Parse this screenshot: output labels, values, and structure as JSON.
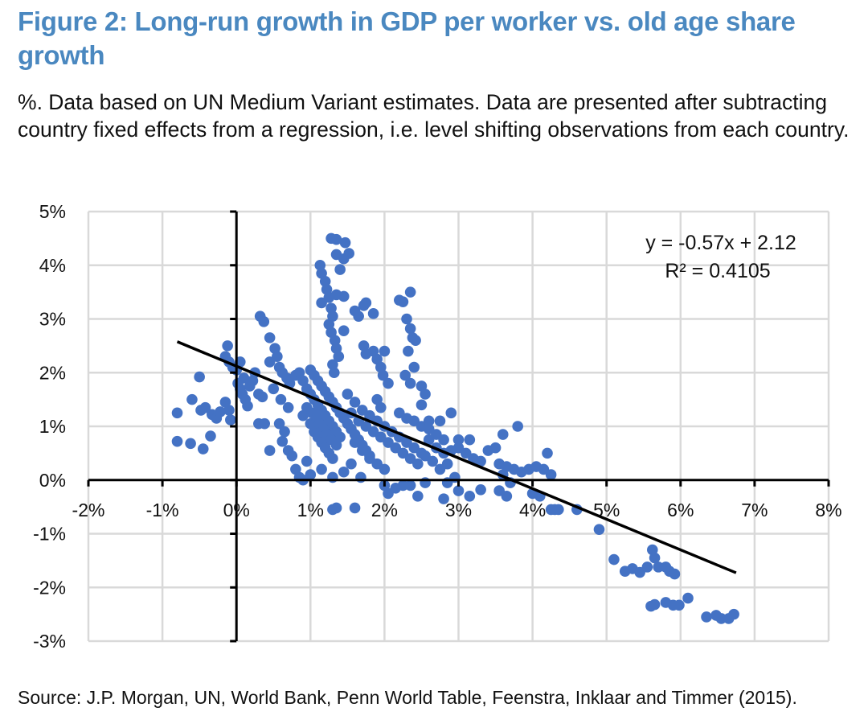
{
  "title": "Figure 2: Long-run growth in GDP per worker vs. old age share growth",
  "subtitle": "%. Data based on UN Medium Variant estimates. Data are presented after subtracting country fixed effects from a regression, i.e. level shifting observations from each country.",
  "source": "Source: J.P. Morgan, UN, World Bank, Penn World Table, Feenstra, Inklaar and Timmer (2015).",
  "colors": {
    "title": "#4a88c0",
    "points": "#4472C4",
    "trendline": "#000000",
    "grid": "#d9d9d9"
  },
  "chart_data": {
    "type": "scatter",
    "title": "Long-run growth in GDP per worker vs. old age share growth",
    "xlabel": "",
    "ylabel": "",
    "xlim": [
      -2,
      8
    ],
    "ylim": [
      -3,
      5
    ],
    "x_ticks": [
      "-2%",
      "-1%",
      "0%",
      "1%",
      "2%",
      "3%",
      "4%",
      "5%",
      "6%",
      "7%",
      "8%"
    ],
    "y_ticks": [
      "5%",
      "4%",
      "3%",
      "2%",
      "1%",
      "0%",
      "-1%",
      "-2%",
      "-3%"
    ],
    "x_tick_values": [
      -2,
      -1,
      0,
      1,
      2,
      3,
      4,
      5,
      6,
      7,
      8
    ],
    "y_tick_values": [
      5,
      4,
      3,
      2,
      1,
      0,
      -1,
      -2,
      -3
    ],
    "grid": true,
    "trendline": {
      "equation": "y = -0.57x + 2.12",
      "r_squared": "R² = 0.4105",
      "slope": -0.57,
      "intercept": 2.12,
      "x_range": [
        -0.8,
        6.75
      ]
    },
    "points": [
      [
        -0.8,
        1.25
      ],
      [
        -0.8,
        0.72
      ],
      [
        -0.62,
        0.68
      ],
      [
        -0.45,
        0.58
      ],
      [
        -0.35,
        0.82
      ],
      [
        -0.5,
        1.92
      ],
      [
        -0.6,
        1.5
      ],
      [
        -0.48,
        1.3
      ],
      [
        -0.42,
        1.35
      ],
      [
        -0.33,
        1.22
      ],
      [
        -0.27,
        1.15
      ],
      [
        -0.22,
        1.27
      ],
      [
        -0.15,
        1.45
      ],
      [
        -0.1,
        1.3
      ],
      [
        -0.08,
        1.12
      ],
      [
        -0.12,
        2.5
      ],
      [
        -0.15,
        2.3
      ],
      [
        -0.1,
        2.2
      ],
      [
        -0.05,
        2.1
      ],
      [
        0.0,
        2.05
      ],
      [
        0.05,
        2.2
      ],
      [
        0.1,
        1.9
      ],
      [
        0.02,
        1.8
      ],
      [
        0.05,
        1.7
      ],
      [
        0.08,
        1.6
      ],
      [
        0.12,
        1.5
      ],
      [
        0.15,
        1.38
      ],
      [
        0.18,
        1.75
      ],
      [
        0.22,
        1.85
      ],
      [
        0.25,
        2.0
      ],
      [
        0.3,
        1.6
      ],
      [
        0.35,
        1.55
      ],
      [
        0.3,
        1.05
      ],
      [
        0.38,
        1.05
      ],
      [
        0.32,
        3.05
      ],
      [
        0.37,
        2.95
      ],
      [
        0.45,
        2.65
      ],
      [
        0.52,
        2.45
      ],
      [
        0.55,
        2.3
      ],
      [
        0.45,
        2.2
      ],
      [
        0.58,
        2.1
      ],
      [
        0.62,
        2.0
      ],
      [
        0.68,
        1.9
      ],
      [
        0.72,
        1.8
      ],
      [
        0.5,
        1.7
      ],
      [
        0.6,
        1.5
      ],
      [
        0.7,
        1.35
      ],
      [
        0.58,
        1.05
      ],
      [
        0.65,
        0.9
      ],
      [
        0.62,
        0.72
      ],
      [
        0.7,
        0.55
      ],
      [
        0.75,
        0.45
      ],
      [
        0.45,
        0.55
      ],
      [
        0.8,
        0.2
      ],
      [
        0.85,
        0.05
      ],
      [
        0.95,
        0.35
      ],
      [
        0.8,
        1.95
      ],
      [
        0.85,
        2.0
      ],
      [
        0.9,
        1.85
      ],
      [
        0.95,
        1.7
      ],
      [
        1.0,
        1.6
      ],
      [
        1.05,
        1.5
      ],
      [
        1.1,
        1.4
      ],
      [
        1.15,
        1.3
      ],
      [
        1.2,
        1.2
      ],
      [
        1.25,
        1.1
      ],
      [
        1.3,
        1.0
      ],
      [
        1.35,
        0.9
      ],
      [
        1.4,
        0.8
      ],
      [
        0.9,
        1.2
      ],
      [
        1.0,
        1.05
      ],
      [
        1.05,
        0.9
      ],
      [
        1.1,
        0.8
      ],
      [
        1.15,
        0.7
      ],
      [
        1.2,
        0.6
      ],
      [
        1.25,
        0.5
      ],
      [
        1.3,
        0.4
      ],
      [
        0.95,
        1.35
      ],
      [
        1.02,
        1.25
      ],
      [
        1.08,
        1.15
      ],
      [
        1.12,
        1.05
      ],
      [
        1.18,
        0.95
      ],
      [
        1.22,
        0.85
      ],
      [
        1.28,
        0.75
      ],
      [
        1.35,
        0.65
      ],
      [
        1.0,
        2.05
      ],
      [
        1.05,
        1.95
      ],
      [
        1.1,
        1.85
      ],
      [
        1.15,
        1.75
      ],
      [
        1.2,
        1.65
      ],
      [
        1.25,
        1.55
      ],
      [
        1.3,
        1.45
      ],
      [
        1.35,
        1.35
      ],
      [
        1.4,
        1.25
      ],
      [
        1.45,
        1.15
      ],
      [
        1.5,
        1.05
      ],
      [
        1.55,
        0.95
      ],
      [
        1.6,
        0.85
      ],
      [
        1.65,
        0.75
      ],
      [
        1.7,
        0.65
      ],
      [
        1.75,
        0.55
      ],
      [
        1.8,
        0.45
      ],
      [
        1.13,
        4.0
      ],
      [
        1.15,
        3.85
      ],
      [
        1.2,
        3.7
      ],
      [
        1.22,
        3.55
      ],
      [
        1.25,
        3.4
      ],
      [
        1.15,
        3.3
      ],
      [
        1.28,
        3.2
      ],
      [
        1.3,
        3.05
      ],
      [
        1.25,
        2.9
      ],
      [
        1.28,
        2.75
      ],
      [
        1.33,
        2.6
      ],
      [
        1.35,
        2.45
      ],
      [
        1.38,
        2.3
      ],
      [
        1.3,
        2.15
      ],
      [
        1.32,
        2.0
      ],
      [
        1.28,
        4.5
      ],
      [
        1.35,
        4.48
      ],
      [
        1.47,
        4.42
      ],
      [
        1.52,
        4.22
      ],
      [
        1.35,
        4.2
      ],
      [
        1.45,
        4.12
      ],
      [
        1.4,
        3.92
      ],
      [
        1.35,
        3.45
      ],
      [
        1.45,
        3.42
      ],
      [
        1.45,
        2.78
      ],
      [
        1.6,
        3.15
      ],
      [
        1.65,
        3.05
      ],
      [
        1.72,
        3.25
      ],
      [
        1.75,
        3.3
      ],
      [
        1.85,
        3.1
      ],
      [
        1.72,
        2.5
      ],
      [
        1.75,
        2.35
      ],
      [
        1.85,
        2.4
      ],
      [
        1.9,
        2.25
      ],
      [
        1.95,
        2.1
      ],
      [
        2.0,
        2.4
      ],
      [
        1.98,
        1.95
      ],
      [
        2.05,
        1.8
      ],
      [
        1.9,
        1.5
      ],
      [
        1.95,
        1.35
      ],
      [
        2.2,
        3.35
      ],
      [
        2.25,
        3.32
      ],
      [
        2.35,
        3.5
      ],
      [
        2.3,
        3.0
      ],
      [
        2.35,
        2.82
      ],
      [
        2.38,
        2.65
      ],
      [
        2.42,
        2.6
      ],
      [
        2.32,
        2.4
      ],
      [
        2.4,
        2.1
      ],
      [
        2.28,
        1.95
      ],
      [
        2.35,
        1.8
      ],
      [
        2.5,
        1.75
      ],
      [
        2.55,
        1.6
      ],
      [
        2.5,
        1.4
      ],
      [
        1.5,
        1.6
      ],
      [
        1.6,
        1.45
      ],
      [
        1.7,
        1.3
      ],
      [
        1.8,
        1.2
      ],
      [
        1.9,
        1.1
      ],
      [
        2.0,
        1.0
      ],
      [
        2.1,
        0.9
      ],
      [
        2.2,
        0.8
      ],
      [
        2.3,
        0.7
      ],
      [
        2.4,
        0.6
      ],
      [
        2.5,
        0.5
      ],
      [
        1.55,
        1.25
      ],
      [
        1.65,
        1.1
      ],
      [
        1.75,
        1.0
      ],
      [
        1.85,
        0.9
      ],
      [
        1.95,
        0.8
      ],
      [
        2.05,
        0.7
      ],
      [
        2.15,
        0.6
      ],
      [
        2.25,
        0.5
      ],
      [
        2.35,
        0.4
      ],
      [
        2.45,
        0.3
      ],
      [
        1.6,
        0.7
      ],
      [
        1.7,
        0.55
      ],
      [
        1.8,
        0.4
      ],
      [
        1.9,
        0.3
      ],
      [
        2.0,
        0.2
      ],
      [
        1.55,
        0.3
      ],
      [
        1.45,
        0.15
      ],
      [
        1.3,
        0.05
      ],
      [
        1.15,
        0.2
      ],
      [
        1.0,
        0.1
      ],
      [
        0.9,
        0.0
      ],
      [
        1.68,
        0.05
      ],
      [
        2.2,
        1.25
      ],
      [
        2.3,
        1.15
      ],
      [
        2.4,
        1.1
      ],
      [
        2.5,
        1.0
      ],
      [
        2.6,
        0.95
      ],
      [
        2.7,
        0.85
      ],
      [
        2.8,
        0.75
      ],
      [
        2.6,
        0.75
      ],
      [
        2.7,
        0.6
      ],
      [
        2.8,
        0.5
      ],
      [
        2.55,
        0.45
      ],
      [
        2.65,
        0.35
      ],
      [
        2.75,
        0.2
      ],
      [
        2.85,
        0.3
      ],
      [
        2.6,
        1.1
      ],
      [
        2.75,
        1.1
      ],
      [
        2.9,
        1.25
      ],
      [
        2.0,
        -0.1
      ],
      [
        2.05,
        -0.25
      ],
      [
        2.15,
        -0.15
      ],
      [
        2.25,
        -0.1
      ],
      [
        2.35,
        -0.1
      ],
      [
        2.45,
        -0.3
      ],
      [
        2.55,
        -0.05
      ],
      [
        2.85,
        -0.05
      ],
      [
        3.0,
        -0.2
      ],
      [
        2.8,
        -0.35
      ],
      [
        3.15,
        -0.3
      ],
      [
        3.3,
        -0.18
      ],
      [
        3.2,
        0.4
      ],
      [
        3.1,
        0.5
      ],
      [
        3.0,
        0.6
      ],
      [
        2.95,
        0.05
      ],
      [
        3.4,
        0.55
      ],
      [
        3.5,
        0.6
      ],
      [
        3.6,
        0.85
      ],
      [
        3.8,
        1.0
      ],
      [
        3.3,
        0.35
      ],
      [
        3.55,
        0.3
      ],
      [
        3.65,
        0.25
      ],
      [
        3.75,
        0.2
      ],
      [
        3.85,
        0.15
      ],
      [
        3.95,
        0.2
      ],
      [
        4.05,
        0.25
      ],
      [
        4.15,
        0.2
      ],
      [
        4.25,
        0.1
      ],
      [
        4.2,
        0.5
      ],
      [
        3.6,
        0.1
      ],
      [
        3.7,
        -0.05
      ],
      [
        3.55,
        -0.2
      ],
      [
        3.65,
        -0.3
      ],
      [
        3.0,
        0.75
      ],
      [
        3.15,
        0.75
      ],
      [
        2.9,
        0.55
      ],
      [
        4.0,
        -0.25
      ],
      [
        4.1,
        -0.3
      ],
      [
        4.25,
        -0.55
      ],
      [
        4.3,
        -0.55
      ],
      [
        4.35,
        -0.55
      ],
      [
        4.6,
        -0.55
      ],
      [
        4.9,
        -0.92
      ],
      [
        1.3,
        -0.55
      ],
      [
        1.35,
        -0.52
      ],
      [
        1.6,
        -0.52
      ],
      [
        5.1,
        -1.48
      ],
      [
        5.25,
        -1.7
      ],
      [
        5.35,
        -1.65
      ],
      [
        5.45,
        -1.72
      ],
      [
        5.55,
        -1.62
      ],
      [
        5.62,
        -1.3
      ],
      [
        5.65,
        -1.45
      ],
      [
        5.7,
        -1.62
      ],
      [
        5.8,
        -1.62
      ],
      [
        5.85,
        -1.7
      ],
      [
        5.92,
        -1.75
      ],
      [
        5.6,
        -2.35
      ],
      [
        5.65,
        -2.32
      ],
      [
        5.8,
        -2.28
      ],
      [
        5.9,
        -2.33
      ],
      [
        5.98,
        -2.33
      ],
      [
        6.1,
        -2.2
      ],
      [
        6.35,
        -2.55
      ],
      [
        6.48,
        -2.52
      ],
      [
        6.55,
        -2.58
      ],
      [
        6.65,
        -2.58
      ],
      [
        6.72,
        -2.5
      ]
    ]
  }
}
